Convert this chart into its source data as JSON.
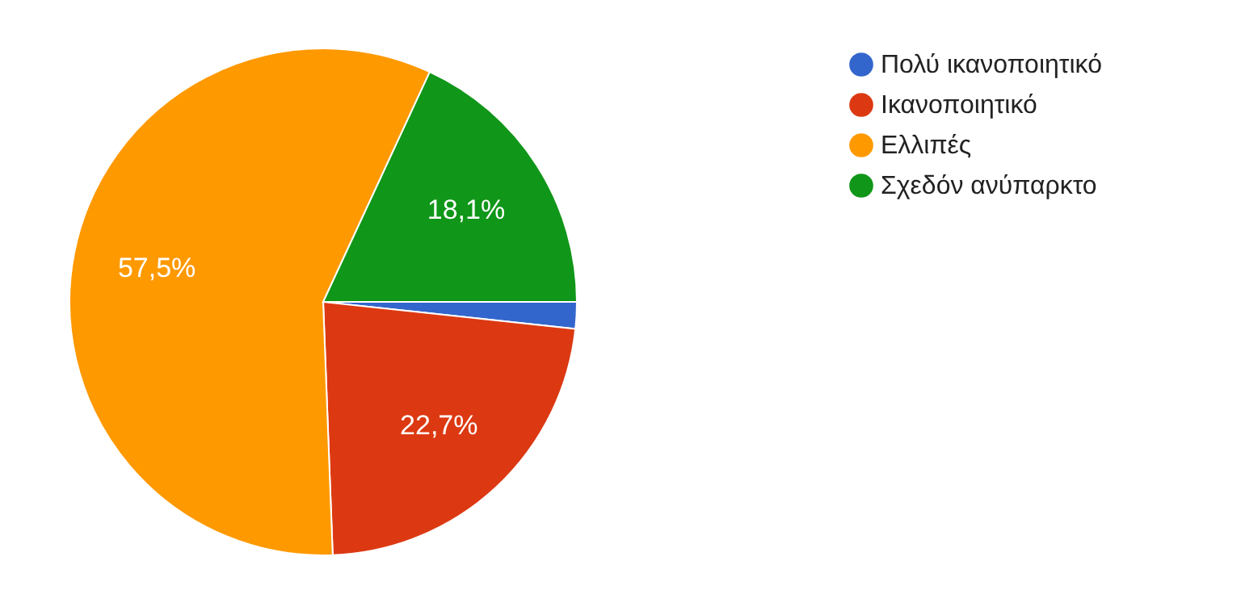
{
  "chart_data": {
    "type": "pie",
    "categories": [
      "Πολύ ικανοποιητικό",
      "Ικανοποιητικό",
      "Ελλιπές",
      "Σχεδόν ανύπαρκτο"
    ],
    "values": [
      1.7,
      22.7,
      57.5,
      18.1
    ],
    "colors": [
      "#3366cc",
      "#dc3912",
      "#ff9900",
      "#109618"
    ],
    "value_labels": [
      null,
      "22,7%",
      "57,5%",
      "18,1%"
    ],
    "legend": "right"
  }
}
